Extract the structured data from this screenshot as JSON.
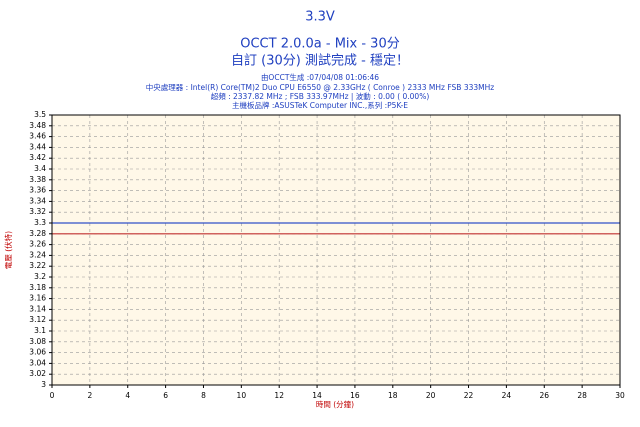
{
  "chart_data": {
    "type": "line",
    "title": "3.3V",
    "subtitles": [
      "OCCT 2.0.0a - Mix - 30分",
      "自訂 (30分) 測試完成 - 穩定！"
    ],
    "annotations": [
      "由OCCT生成 :07/04/08 01:06:46",
      "中央處理器 : Intel(R) Core(TM)2 Duo CPU E6550 @ 2.33GHz ( Conroe ) 2333 MHz FSB 333MHz",
      "超頻 : 2337.82 MHz ; FSB 333.97MHz | 波動 : 0.00 ( 0.00%)",
      "主機板品牌 :ASUSTeK Computer INC.,系列 :P5K-E"
    ],
    "xlabel": "時間 (分鐘)",
    "ylabel": "電壓 (伏特)",
    "x": [
      0,
      30
    ],
    "series": [
      {
        "color": "#3050c8",
        "values": [
          3.3,
          3.3
        ]
      },
      {
        "color": "#c03030",
        "values": [
          3.28,
          3.28
        ]
      }
    ],
    "xlim": [
      0,
      30
    ],
    "xticks": [
      0,
      2,
      4,
      6,
      8,
      10,
      12,
      14,
      16,
      18,
      20,
      22,
      24,
      26,
      28,
      30
    ],
    "ylim": [
      3,
      3.5
    ],
    "yticks": [
      3,
      3.02,
      3.04,
      3.06,
      3.08,
      3.1,
      3.12,
      3.14,
      3.16,
      3.18,
      3.2,
      3.22,
      3.24,
      3.26,
      3.28,
      3.3,
      3.32,
      3.34,
      3.36,
      3.38,
      3.4,
      3.42,
      3.44,
      3.46,
      3.48,
      3.5
    ],
    "grid": true
  }
}
